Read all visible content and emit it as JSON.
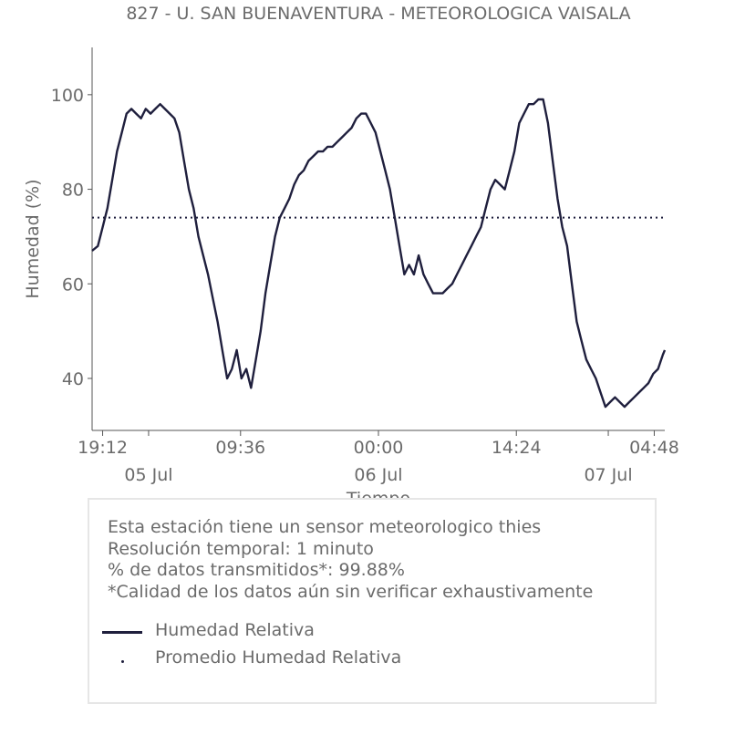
{
  "colors": {
    "line": "#1f1f3d",
    "average": "#1f1f3d",
    "text": "#6b6b6b",
    "box_border": "#e6e6e6"
  },
  "chart_data": {
    "type": "line",
    "title": "827 - U. SAN BUENAVENTURA - METEOROLOGICA VAISALA",
    "xlabel": "Tiempo",
    "ylabel": "Humedad (%)",
    "ylim": [
      29,
      110
    ],
    "yticks": [
      40,
      60,
      80,
      100
    ],
    "xlim_hours": [
      -1.1,
      58.7
    ],
    "xticks": [
      {
        "t": 0,
        "label": "19:12"
      },
      {
        "t": 14.4,
        "label": "09:36"
      },
      {
        "t": 28.8,
        "label": "00:00"
      },
      {
        "t": 43.2,
        "label": "14:24"
      },
      {
        "t": 57.6,
        "label": "04:48"
      }
    ],
    "date_labels": [
      {
        "t": 4.8,
        "label": "05 Jul"
      },
      {
        "t": 28.8,
        "label": "06 Jul"
      },
      {
        "t": 52.8,
        "label": "07 Jul"
      }
    ],
    "grid": false,
    "average": 74,
    "series": [
      {
        "name": "Humedad Relativa",
        "x_hours": [
          -1.1,
          -0.5,
          0,
          0.5,
          1,
          1.5,
          2,
          2.5,
          3,
          3.5,
          4,
          4.5,
          5,
          5.5,
          6,
          6.5,
          7,
          7.5,
          8,
          8.5,
          9,
          9.5,
          10,
          10.5,
          11,
          11.5,
          12,
          12.5,
          13,
          13.5,
          14,
          14.5,
          15,
          15.5,
          16,
          16.5,
          17,
          17.5,
          18,
          18.5,
          19,
          19.5,
          20,
          20.5,
          21,
          21.5,
          22,
          22.5,
          23,
          23.5,
          24,
          24.5,
          25,
          25.5,
          26,
          26.5,
          27,
          27.5,
          28,
          28.5,
          29,
          29.5,
          30,
          30.5,
          31,
          31.5,
          32,
          32.5,
          33,
          33.5,
          34,
          34.5,
          35,
          35.5,
          36,
          36.5,
          37,
          37.5,
          38,
          38.5,
          39,
          39.5,
          40,
          40.5,
          41,
          41.5,
          42,
          42.5,
          43,
          43.5,
          44,
          44.5,
          45,
          45.5,
          46,
          46.5,
          47,
          47.5,
          48,
          48.5,
          49,
          49.5,
          50,
          50.5,
          51,
          51.5,
          52,
          52.5,
          53,
          53.5,
          54,
          54.5,
          55,
          55.5,
          56,
          56.5,
          57,
          57.5,
          58,
          58.5,
          58.7
        ],
        "values": [
          67,
          68,
          72,
          76,
          82,
          88,
          92,
          96,
          97,
          96,
          95,
          97,
          96,
          97,
          98,
          97,
          96,
          95,
          92,
          86,
          80,
          76,
          70,
          66,
          62,
          57,
          52,
          46,
          40,
          42,
          46,
          40,
          42,
          38,
          44,
          50,
          58,
          64,
          70,
          74,
          76,
          78,
          81,
          83,
          84,
          86,
          87,
          88,
          88,
          89,
          89,
          90,
          91,
          92,
          93,
          95,
          96,
          96,
          94,
          92,
          88,
          84,
          80,
          74,
          68,
          62,
          64,
          62,
          66,
          62,
          60,
          58,
          58,
          58,
          59,
          60,
          62,
          64,
          66,
          68,
          70,
          72,
          76,
          80,
          82,
          81,
          80,
          84,
          88,
          94,
          96,
          98,
          98,
          99,
          99,
          94,
          86,
          78,
          72,
          68,
          60,
          52,
          48,
          44,
          42,
          40,
          37,
          34,
          35,
          36,
          35,
          34,
          35,
          36,
          37,
          38,
          39,
          41,
          42,
          45,
          46
        ]
      }
    ]
  },
  "info": {
    "lines": [
      "Esta estación tiene un sensor meteorologico thies",
      "Resolución temporal: 1 minuto",
      "% de datos transmitidos*: 99.88%",
      "*Calidad de los datos aún sin verificar exhaustivamente"
    ],
    "legend": [
      {
        "label": "Humedad Relativa",
        "style": "solid"
      },
      {
        "label": "Promedio Humedad Relativa",
        "style": "dotted"
      }
    ]
  }
}
